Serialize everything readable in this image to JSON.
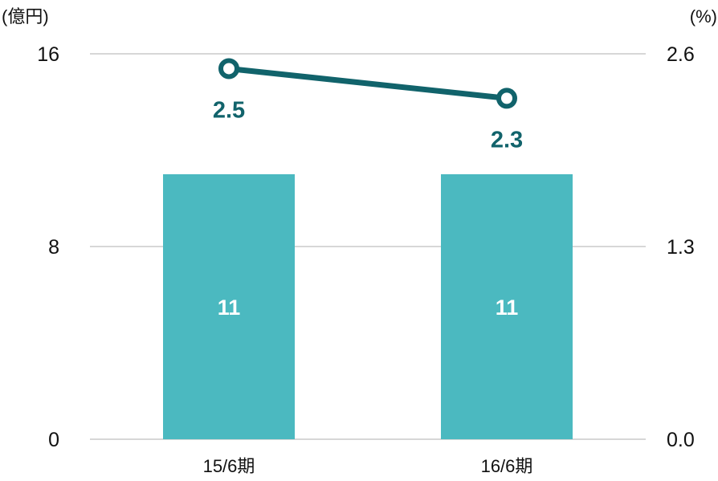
{
  "chart_data": {
    "type": "bar",
    "categories": [
      "15/6期",
      "16/6期"
    ],
    "series": [
      {
        "values": [
          11,
          11
        ],
        "axis": "left",
        "kind": "bar",
        "color": "#4BB9C0",
        "label_color": "#FFFFFF"
      },
      {
        "values": [
          2.5,
          2.3
        ],
        "axis": "right",
        "kind": "line",
        "color": "#11636B",
        "label_color": "#11636B"
      }
    ],
    "y_left": {
      "unit": "(億円)",
      "ylim": [
        0,
        16
      ],
      "ticks": [
        "16",
        "8",
        "0"
      ]
    },
    "y_right": {
      "unit": "(%)",
      "ylim": [
        0,
        2.6
      ],
      "ticks": [
        "2.6",
        "1.3",
        "0.0"
      ]
    },
    "grid": true,
    "grid_color": "#BFBFBF",
    "bar_value_labels": [
      "11",
      "11"
    ],
    "line_value_labels": [
      "2.5",
      "2.3"
    ]
  }
}
